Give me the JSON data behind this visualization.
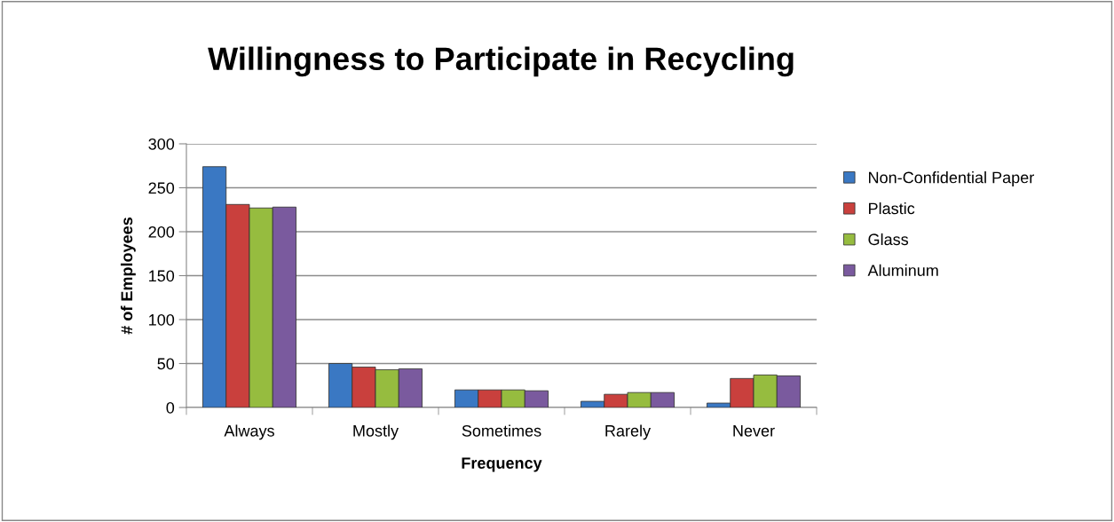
{
  "chart_data": {
    "type": "bar",
    "title": "Willingness to Participate in Recycling",
    "xlabel": "Frequency",
    "ylabel": "# of Employees",
    "categories": [
      "Always",
      "Mostly",
      "Sometimes",
      "Rarely",
      "Never"
    ],
    "series": [
      {
        "name": "Non-Confidential Paper",
        "color": "#3a78c3",
        "values": [
          274,
          50,
          20,
          7,
          5
        ]
      },
      {
        "name": "Plastic",
        "color": "#c9403d",
        "values": [
          231,
          46,
          20,
          15,
          33
        ]
      },
      {
        "name": "Glass",
        "color": "#96bc3f",
        "values": [
          227,
          43,
          20,
          17,
          37
        ]
      },
      {
        "name": "Aluminum",
        "color": "#7a5a9e",
        "values": [
          228,
          44,
          19,
          17,
          36
        ]
      }
    ],
    "ylim": [
      0,
      300
    ],
    "yticks": [
      0,
      50,
      100,
      150,
      200,
      250,
      300
    ],
    "grid": "y",
    "legend": "right"
  }
}
